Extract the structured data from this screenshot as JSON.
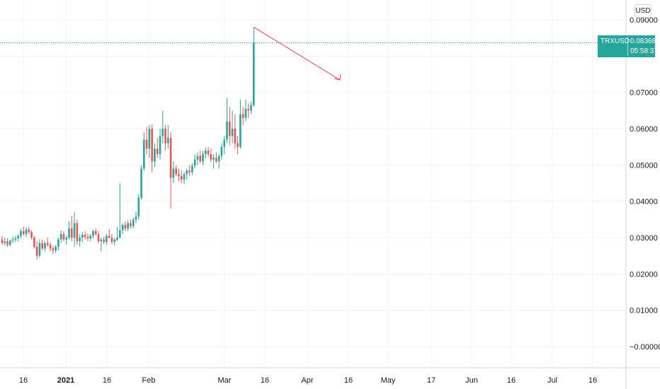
{
  "chart_data": {
    "type": "candlestick",
    "symbol": "TRXUSD",
    "currency": "USD",
    "last_price": "0.08368",
    "countdown": "05:58:37",
    "y_ticks": [
      "0.09000",
      "0.07000",
      "0.06000",
      "0.05000",
      "0.04000",
      "0.03000",
      "0.02000",
      "0.01000",
      "−0.00000"
    ],
    "ylim": [
      -0.0015,
      0.0935
    ],
    "x_ticks": [
      {
        "label": "16",
        "bold": false
      },
      {
        "label": "2021",
        "bold": true
      },
      {
        "label": "16",
        "bold": false
      },
      {
        "label": "Feb",
        "bold": false
      },
      {
        "label": "Mar",
        "bold": false
      },
      {
        "label": "16",
        "bold": false
      },
      {
        "label": "Apr",
        "bold": false
      },
      {
        "label": "16",
        "bold": false
      },
      {
        "label": "May",
        "bold": false
      },
      {
        "label": "17",
        "bold": false
      },
      {
        "label": "Jun",
        "bold": false
      },
      {
        "label": "16",
        "bold": false
      },
      {
        "label": "Jul",
        "bold": false
      },
      {
        "label": "16",
        "bold": false
      }
    ],
    "first_date": "2020-12-06",
    "candles": [
      [
        0.0295,
        0.0305,
        0.028,
        0.0285
      ],
      [
        0.0285,
        0.03,
        0.0278,
        0.029
      ],
      [
        0.029,
        0.0298,
        0.0275,
        0.028
      ],
      [
        0.028,
        0.0295,
        0.0276,
        0.0292
      ],
      [
        0.0292,
        0.0302,
        0.0285,
        0.0295
      ],
      [
        0.0295,
        0.0305,
        0.0288,
        0.0298
      ],
      [
        0.0298,
        0.031,
        0.029,
        0.0305
      ],
      [
        0.0305,
        0.0325,
        0.0298,
        0.0318
      ],
      [
        0.0318,
        0.033,
        0.0305,
        0.031
      ],
      [
        0.031,
        0.0328,
        0.0302,
        0.0322
      ],
      [
        0.0322,
        0.033,
        0.031,
        0.0315
      ],
      [
        0.0315,
        0.032,
        0.0295,
        0.03
      ],
      [
        0.03,
        0.0305,
        0.027,
        0.0275
      ],
      [
        0.0275,
        0.029,
        0.024,
        0.025
      ],
      [
        0.025,
        0.0295,
        0.0245,
        0.0285
      ],
      [
        0.0285,
        0.0295,
        0.0265,
        0.027
      ],
      [
        0.027,
        0.029,
        0.0262,
        0.0285
      ],
      [
        0.0285,
        0.03,
        0.0275,
        0.028
      ],
      [
        0.028,
        0.0288,
        0.0262,
        0.027
      ],
      [
        0.027,
        0.0278,
        0.0255,
        0.0265
      ],
      [
        0.0265,
        0.028,
        0.0258,
        0.0275
      ],
      [
        0.0275,
        0.03,
        0.0265,
        0.0295
      ],
      [
        0.0295,
        0.032,
        0.0285,
        0.031
      ],
      [
        0.031,
        0.0318,
        0.029,
        0.0295
      ],
      [
        0.0295,
        0.0305,
        0.028,
        0.03
      ],
      [
        0.03,
        0.0345,
        0.0295,
        0.0325
      ],
      [
        0.0325,
        0.036,
        0.029,
        0.03
      ],
      [
        0.03,
        0.037,
        0.0275,
        0.034
      ],
      [
        0.034,
        0.035,
        0.028,
        0.029
      ],
      [
        0.029,
        0.031,
        0.0275,
        0.03
      ],
      [
        0.03,
        0.0315,
        0.0288,
        0.0308
      ],
      [
        0.0308,
        0.0318,
        0.0295,
        0.0302
      ],
      [
        0.0302,
        0.0312,
        0.029,
        0.0298
      ],
      [
        0.0298,
        0.031,
        0.029,
        0.0305
      ],
      [
        0.0305,
        0.0322,
        0.0298,
        0.0318
      ],
      [
        0.0318,
        0.0325,
        0.0305,
        0.031
      ],
      [
        0.031,
        0.0318,
        0.0285,
        0.029
      ],
      [
        0.029,
        0.03,
        0.0262,
        0.0295
      ],
      [
        0.0295,
        0.0302,
        0.0282,
        0.0288
      ],
      [
        0.0288,
        0.031,
        0.028,
        0.0305
      ],
      [
        0.0305,
        0.0325,
        0.0298,
        0.03
      ],
      [
        0.03,
        0.031,
        0.0282,
        0.0288
      ],
      [
        0.0288,
        0.03,
        0.0278,
        0.0295
      ],
      [
        0.0295,
        0.033,
        0.029,
        0.03
      ],
      [
        0.03,
        0.045,
        0.0298,
        0.032
      ],
      [
        0.032,
        0.034,
        0.031,
        0.0335
      ],
      [
        0.0335,
        0.0345,
        0.0318,
        0.0325
      ],
      [
        0.0325,
        0.0348,
        0.0318,
        0.034
      ],
      [
        0.034,
        0.035,
        0.0325,
        0.0332
      ],
      [
        0.0332,
        0.0355,
        0.0325,
        0.035
      ],
      [
        0.035,
        0.0372,
        0.034,
        0.0358
      ],
      [
        0.0358,
        0.042,
        0.035,
        0.041
      ],
      [
        0.041,
        0.05,
        0.0405,
        0.049
      ],
      [
        0.049,
        0.059,
        0.0485,
        0.057
      ],
      [
        0.057,
        0.0605,
        0.053,
        0.0545
      ],
      [
        0.0545,
        0.061,
        0.052,
        0.06
      ],
      [
        0.06,
        0.0612,
        0.048,
        0.051
      ],
      [
        0.051,
        0.056,
        0.0495,
        0.0545
      ],
      [
        0.0545,
        0.0575,
        0.052,
        0.053
      ],
      [
        0.053,
        0.06,
        0.0515,
        0.058
      ],
      [
        0.058,
        0.065,
        0.056,
        0.06
      ],
      [
        0.06,
        0.061,
        0.054,
        0.056
      ],
      [
        0.056,
        0.061,
        0.0545,
        0.0575
      ],
      [
        0.0575,
        0.059,
        0.038,
        0.0465
      ],
      [
        0.0465,
        0.051,
        0.045,
        0.049
      ],
      [
        0.049,
        0.05,
        0.047,
        0.0475
      ],
      [
        0.0475,
        0.049,
        0.0455,
        0.047
      ],
      [
        0.047,
        0.0485,
        0.045,
        0.046
      ],
      [
        0.046,
        0.048,
        0.0448,
        0.0475
      ],
      [
        0.0475,
        0.049,
        0.046,
        0.0485
      ],
      [
        0.0485,
        0.05,
        0.047,
        0.048
      ],
      [
        0.048,
        0.0505,
        0.0472,
        0.0498
      ],
      [
        0.0498,
        0.053,
        0.049,
        0.0515
      ],
      [
        0.0515,
        0.0535,
        0.05,
        0.0525
      ],
      [
        0.0525,
        0.054,
        0.0505,
        0.051
      ],
      [
        0.051,
        0.054,
        0.05,
        0.053
      ],
      [
        0.053,
        0.0548,
        0.0518,
        0.054
      ],
      [
        0.054,
        0.055,
        0.0522,
        0.053
      ],
      [
        0.053,
        0.0545,
        0.0508,
        0.0515
      ],
      [
        0.0515,
        0.053,
        0.049,
        0.052
      ],
      [
        0.052,
        0.0535,
        0.0505,
        0.051
      ],
      [
        0.051,
        0.053,
        0.049,
        0.0525
      ],
      [
        0.0525,
        0.056,
        0.0515,
        0.055
      ],
      [
        0.055,
        0.058,
        0.053,
        0.057
      ],
      [
        0.057,
        0.0685,
        0.056,
        0.062
      ],
      [
        0.062,
        0.066,
        0.0555,
        0.058
      ],
      [
        0.058,
        0.065,
        0.056,
        0.06
      ],
      [
        0.06,
        0.064,
        0.0545,
        0.056
      ],
      [
        0.056,
        0.058,
        0.053,
        0.055
      ],
      [
        0.055,
        0.068,
        0.0545,
        0.064
      ],
      [
        0.064,
        0.066,
        0.061,
        0.063
      ],
      [
        0.063,
        0.068,
        0.062,
        0.0655
      ],
      [
        0.0655,
        0.067,
        0.063,
        0.065
      ],
      [
        0.065,
        0.0675,
        0.064,
        0.0665
      ],
      [
        0.0665,
        0.088,
        0.066,
        0.0837
      ]
    ],
    "up_color": "#26a69a",
    "down_color": "#ef5350",
    "annotation_color": "#f23645",
    "grid": true
  }
}
